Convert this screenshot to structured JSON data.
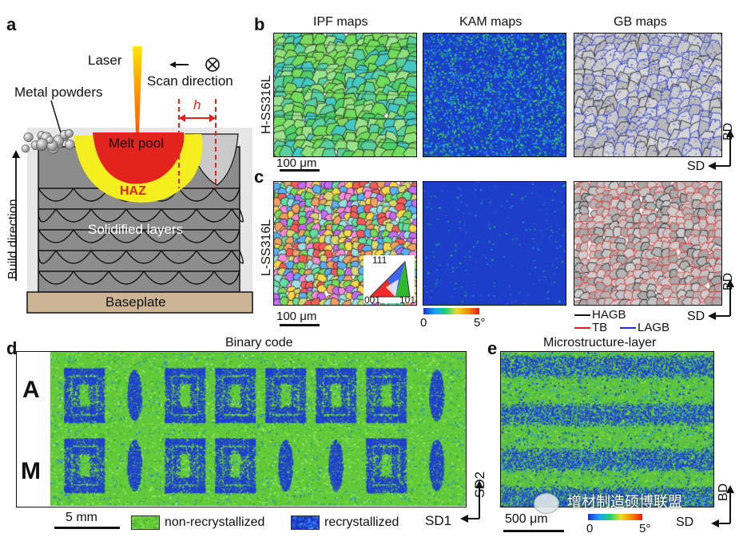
{
  "colors": {
    "non_recrystallized": "#63c93a",
    "recrystallized": "#1e3fd0",
    "melt_pool": "#e3231e",
    "haz": "#f5ef1f",
    "baseplate": "#cbb596",
    "solidified": "#8c8c8c",
    "hagb": "#111111",
    "tb": "#e02020",
    "lagb": "#1f2fd6"
  },
  "panel_a": {
    "label": "a",
    "laser": "Laser",
    "scan_direction": "Scan direction",
    "metal_powders": "Metal powders",
    "h": "h",
    "melt_pool": "Melt pool",
    "haz": "HAZ",
    "solidified_layers": "Solidified layers",
    "baseplate": "Baseplate",
    "build_direction": "Build direction"
  },
  "panel_b": {
    "label": "b",
    "col_ipf": "IPF maps",
    "col_kam": "KAM maps",
    "col_gb": "GB maps",
    "row_label": "H-SS316L",
    "scale": "100 μm",
    "axis_bd": "BD",
    "axis_sd": "SD"
  },
  "panel_c": {
    "label": "c",
    "row_label": "L-SS316L",
    "scale": "100 μm",
    "ipf_111": "111",
    "ipf_001": "001",
    "ipf_101": "101",
    "kam_min": "0",
    "kam_max": "5°",
    "legend_hagb": "HAGB",
    "legend_tb": "TB",
    "legend_lagb": "LAGB",
    "axis_bd": "BD",
    "axis_sd": "SD"
  },
  "panel_d": {
    "label": "d",
    "title": "Binary code",
    "row_a_label": "A",
    "row_m_label": "M",
    "row_a_code": "01000001",
    "row_m_code": "01001101",
    "scale": "5 mm",
    "legend_non": "non-recrystallized",
    "legend_rec": "recrystallized",
    "axis_sd1": "SD1",
    "axis_sd2": "SD2"
  },
  "panel_e": {
    "label": "e",
    "title": "Microstructure-layer",
    "scale": "500 μm",
    "watermark": "增材制造硕博联盟",
    "kam_min": "0",
    "kam_max": "5°",
    "axis_bd": "BD",
    "axis_sd": "SD"
  }
}
